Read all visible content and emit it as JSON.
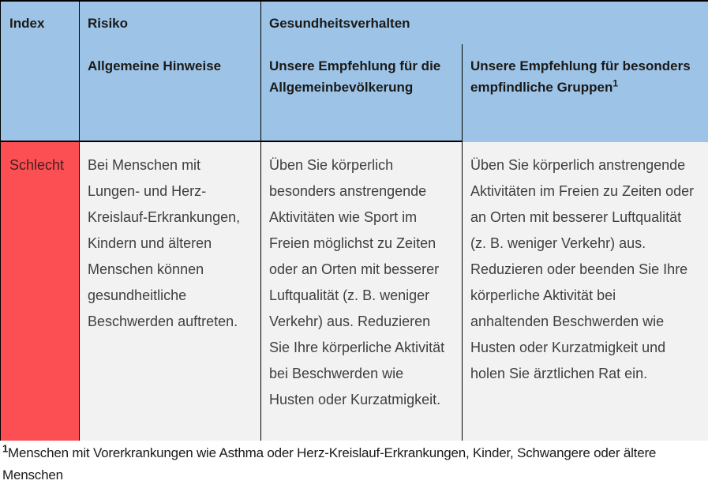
{
  "table": {
    "header": {
      "index": "Index",
      "risiko_title": "Risiko",
      "risiko_subtitle": "Allgemeine Hinweise",
      "gesundheit_title": "Gesundheitsverhalten",
      "empfehlung_allgemein": "Unsere Empfehlung für die Allgemeinbevölkerung",
      "empfehlung_empfindlich": "Unsere Empfehlung für besonders empfindliche Gruppen",
      "empfehlung_empfindlich_sup": "1"
    },
    "row_schlecht": {
      "index_label": "Schlecht",
      "allgemeine_hinweise": "Bei Menschen mit Lungen- und Herz-Kreislauf-Erkrankungen, Kindern und älteren Menschen können gesundheitliche Beschwerden auftreten.",
      "empfehlung_allgemein": "Üben Sie körperlich besonders anstrengende Aktivitäten wie Sport im Freien möglichst zu Zeiten oder an Orten mit besserer Luftqualität (z. B. weniger Verkehr) aus. Reduzieren Sie Ihre körperliche Aktivität bei Beschwerden wie Husten oder Kurzatmigkeit.",
      "empfehlung_empfindlich": "Üben Sie körperlich anstrengende Aktivitäten im Freien zu Zeiten oder an Orten mit besserer Luftqualität (z. B. weniger Verkehr) aus. Reduzieren oder beenden Sie Ihre körperliche Aktivität bei anhaltenden Beschwerden wie Husten oder Kurzatmigkeit und holen Sie ärztlichen Rat ein."
    }
  },
  "footnote": {
    "sup": "1",
    "text": "Menschen mit Vorerkrankungen wie Asthma oder Herz-Kreislauf-Erkrankungen, Kinder, Schwangere oder ältere Menschen"
  },
  "colors": {
    "header_bg": "#9DC3E6",
    "index_schlecht_bg": "#FC4F54",
    "body_bg": "#F2F2F2",
    "border": "#000000",
    "body_text": "#3F3F3F",
    "index_text": "#461E1E"
  }
}
